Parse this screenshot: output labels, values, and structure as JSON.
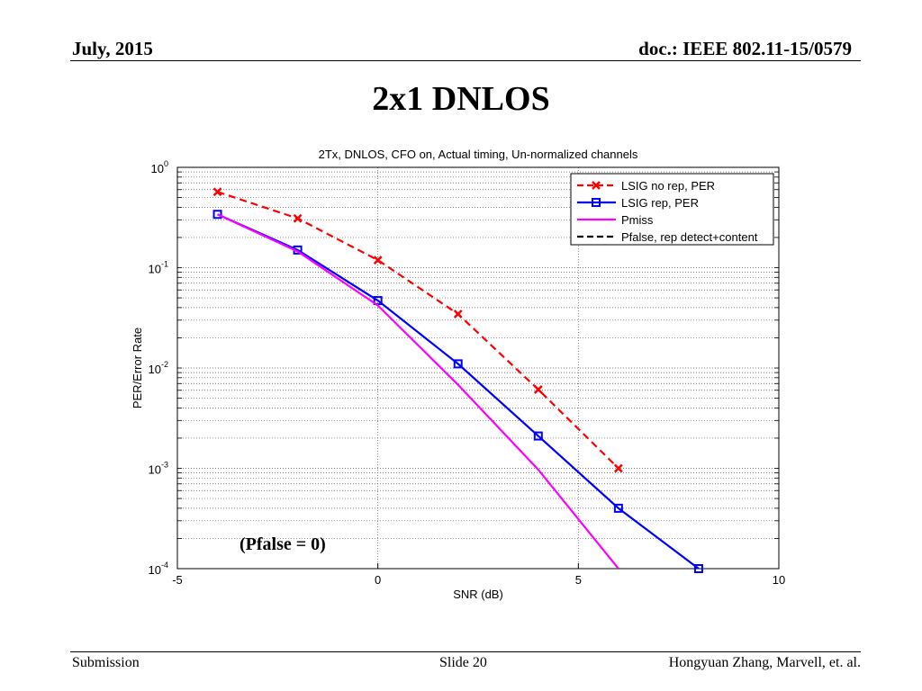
{
  "header": {
    "date": "July, 2015",
    "doc": "doc.: IEEE 802.11-15/0579"
  },
  "slide_title": "2x1 DNLOS",
  "footer": {
    "left": "Submission",
    "center": "Slide 20",
    "right": "Hongyuan Zhang,  Marvell, et. al."
  },
  "annotation": "(Pfalse = 0)",
  "chart_data": {
    "type": "line",
    "title": "2Tx, DNLOS, CFO on, Actual timing, Un-normalized channels",
    "xlabel": "SNR (dB)",
    "ylabel": "PER/Error Rate",
    "xlim": [
      -5,
      10
    ],
    "ylim": [
      0.0001,
      1
    ],
    "yscale": "log",
    "xticks": [
      "-5",
      "0",
      "5",
      "10"
    ],
    "yticks": [
      {
        "base": "10",
        "exp": "0"
      },
      {
        "base": "10",
        "exp": "-1"
      },
      {
        "base": "10",
        "exp": "-2"
      },
      {
        "base": "10",
        "exp": "-3"
      },
      {
        "base": "10",
        "exp": "-4"
      }
    ],
    "grid": true,
    "legend_position": "top-right",
    "series": [
      {
        "name": "LSIG no rep, PER",
        "color": "#ff0000",
        "style": "dashed",
        "marker": "x",
        "x": [
          -4,
          -2,
          0,
          2,
          4,
          6
        ],
        "y": [
          0.57,
          0.31,
          0.119,
          0.0345,
          0.0061,
          0.001
        ]
      },
      {
        "name": "LSIG rep, PER",
        "color": "#0000ff",
        "style": "solid",
        "marker": "square",
        "x": [
          -4,
          -2,
          0,
          2,
          4,
          6,
          8
        ],
        "y": [
          0.34,
          0.15,
          0.047,
          0.011,
          0.0021,
          0.0004,
          0.0001
        ]
      },
      {
        "name": "Pmiss",
        "color": "#ff00ff",
        "style": "solid",
        "marker": "none",
        "x": [
          -4,
          -2,
          0,
          2,
          4,
          6
        ],
        "y": [
          0.34,
          0.145,
          0.042,
          0.0068,
          0.00097,
          0.0001
        ]
      },
      {
        "name": "Pfalse, rep detect+content",
        "color": "#000000",
        "style": "dashed",
        "marker": "none",
        "x": [],
        "y": []
      }
    ]
  }
}
